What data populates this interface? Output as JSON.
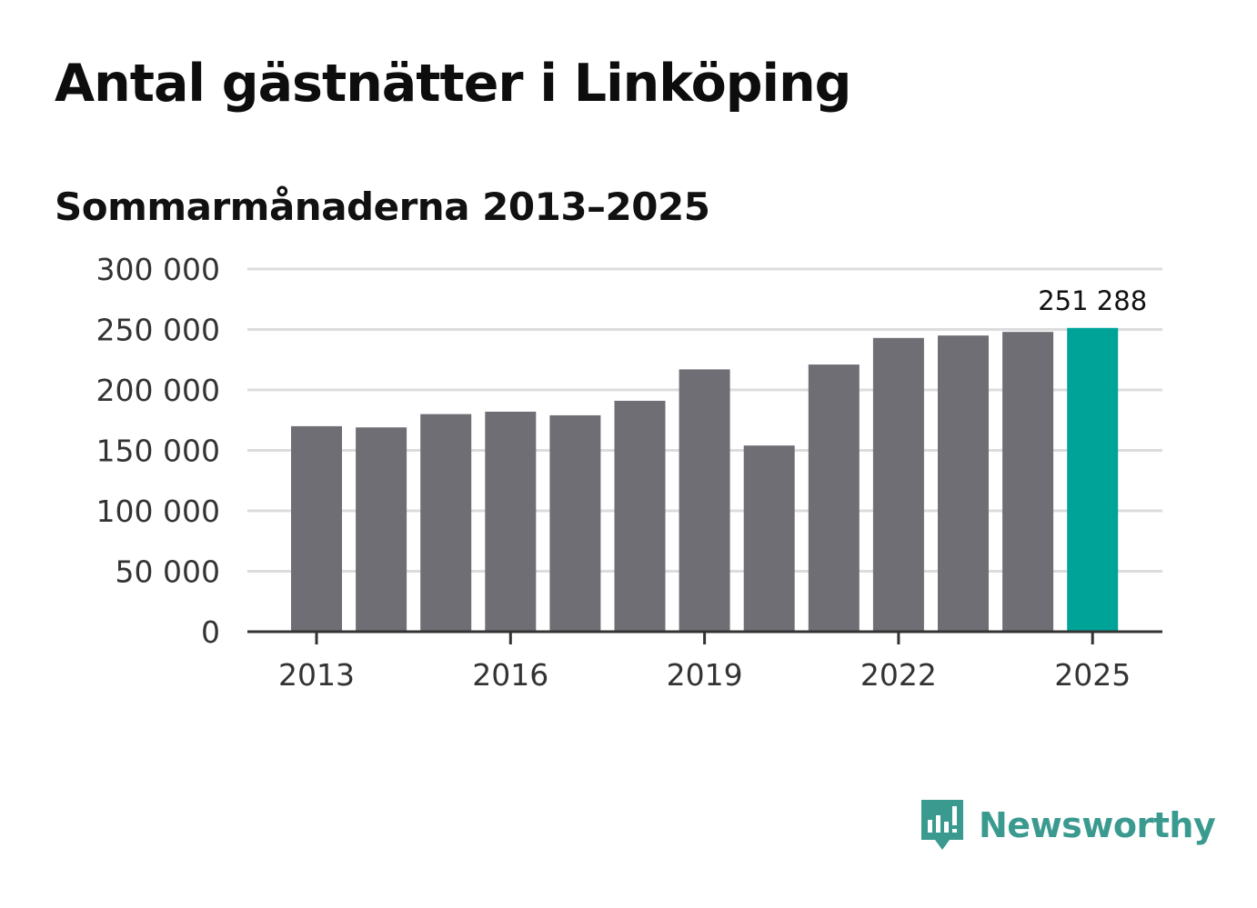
{
  "title": "Antal gästnätter i Linköping",
  "subtitle": "Sommarmånaderna 2013–2025",
  "brand": {
    "name": "Newsworthy",
    "icon": "newsworthy-bar-chart-icon",
    "color": "#3a9a90"
  },
  "chart_data": {
    "type": "bar",
    "categories": [
      "2013",
      "2014",
      "2015",
      "2016",
      "2017",
      "2018",
      "2019",
      "2020",
      "2021",
      "2022",
      "2023",
      "2024",
      "2025"
    ],
    "values": [
      170000,
      169000,
      180000,
      182000,
      179000,
      191000,
      217000,
      154000,
      221000,
      243000,
      245000,
      248000,
      251288
    ],
    "x_tick_labels": [
      "2013",
      "2016",
      "2019",
      "2022",
      "2025"
    ],
    "y_tick_labels": [
      "0",
      "50 000",
      "100 000",
      "150 000",
      "200 000",
      "250 000",
      "300 000"
    ],
    "y_ticks": [
      0,
      50000,
      100000,
      150000,
      200000,
      250000,
      300000
    ],
    "ylim": [
      0,
      300000
    ],
    "grid": true,
    "highlight": {
      "category": "2025",
      "value": 251288,
      "label": "251 288",
      "color": "#00a398"
    },
    "bar_color": "#6f6e75",
    "grid_color": "#dcdcdc",
    "axis_color": "#333333",
    "xlabel": "",
    "ylabel": ""
  }
}
